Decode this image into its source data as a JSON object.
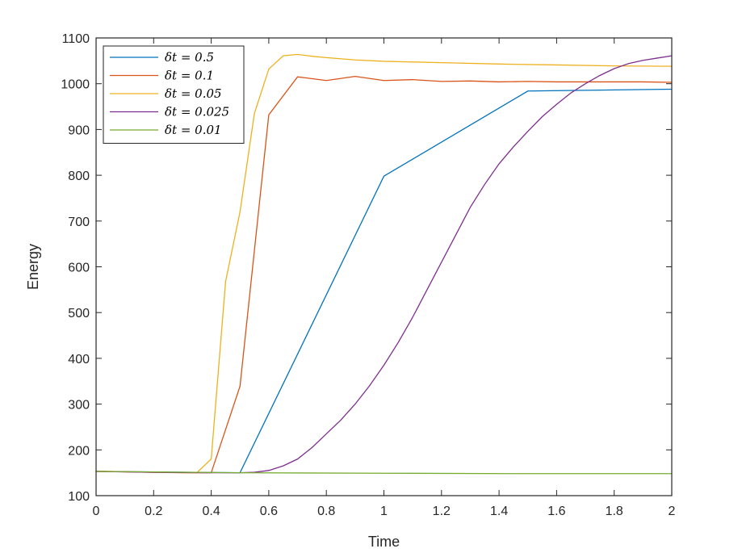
{
  "chart_data": {
    "type": "line",
    "xlabel": "Time",
    "ylabel": "Energy",
    "xlim": [
      0,
      2
    ],
    "ylim": [
      100,
      1100
    ],
    "xticks": [
      "0",
      "0.2",
      "0.4",
      "0.6",
      "0.8",
      "1",
      "1.2",
      "1.4",
      "1.6",
      "1.8",
      "2"
    ],
    "yticks": [
      "100",
      "200",
      "300",
      "400",
      "500",
      "600",
      "700",
      "800",
      "900",
      "1000",
      "1100"
    ],
    "grid": false,
    "legend_position": "top-left",
    "series": [
      {
        "name": "δt = 0.5",
        "color": "#0072BD",
        "x": [
          0,
          0.5,
          1.0,
          1.5,
          2.0
        ],
        "y": [
          153,
          150,
          798,
          984,
          988
        ]
      },
      {
        "name": "δt = 0.1",
        "color": "#D95319",
        "x": [
          0,
          0.1,
          0.2,
          0.3,
          0.4,
          0.5,
          0.6,
          0.7,
          0.8,
          0.9,
          1.0,
          1.1,
          1.2,
          1.3,
          1.4,
          1.5,
          1.6,
          1.7,
          1.8,
          1.9,
          2.0
        ],
        "y": [
          153,
          152,
          151,
          150,
          150,
          339,
          932,
          1015,
          1007,
          1016,
          1007,
          1009,
          1005,
          1006,
          1004,
          1005,
          1004,
          1004,
          1004,
          1004,
          1003
        ]
      },
      {
        "name": "δt = 0.05",
        "color": "#EDB120",
        "x": [
          0,
          0.05,
          0.1,
          0.15,
          0.2,
          0.25,
          0.3,
          0.35,
          0.4,
          0.45,
          0.5,
          0.55,
          0.6,
          0.65,
          0.7,
          0.75,
          0.8,
          0.9,
          1.0,
          1.2,
          1.4,
          1.6,
          1.8,
          2.0
        ],
        "y": [
          153,
          153,
          152,
          152,
          151,
          151,
          150,
          150,
          180,
          568,
          720,
          935,
          1032,
          1061,
          1064,
          1060,
          1057,
          1052,
          1049,
          1046,
          1043,
          1041,
          1039,
          1038
        ]
      },
      {
        "name": "δt = 0.025",
        "color": "#7E2F8E",
        "x": [
          0,
          0.2,
          0.4,
          0.5,
          0.55,
          0.6,
          0.65,
          0.7,
          0.75,
          0.8,
          0.85,
          0.9,
          0.95,
          1.0,
          1.05,
          1.1,
          1.15,
          1.2,
          1.25,
          1.3,
          1.35,
          1.4,
          1.45,
          1.5,
          1.55,
          1.6,
          1.65,
          1.7,
          1.75,
          1.8,
          1.85,
          1.9,
          1.95,
          2.0
        ],
        "y": [
          153,
          151,
          150,
          150,
          151,
          155,
          165,
          180,
          205,
          235,
          265,
          300,
          340,
          385,
          435,
          490,
          550,
          610,
          670,
          730,
          780,
          825,
          862,
          896,
          928,
          955,
          980,
          1000,
          1018,
          1033,
          1044,
          1051,
          1056,
          1061
        ]
      },
      {
        "name": "δt = 0.01",
        "color": "#77AC30",
        "x": [
          0,
          0.5,
          1.0,
          1.5,
          2.0
        ],
        "y": [
          153,
          150,
          149,
          148,
          148
        ]
      }
    ]
  }
}
